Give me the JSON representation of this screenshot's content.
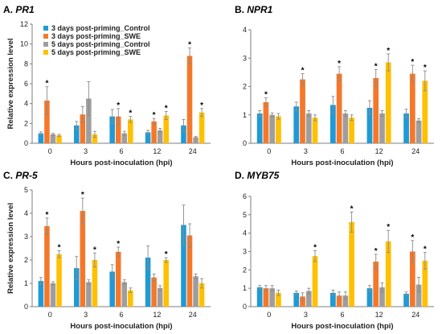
{
  "colors": {
    "blue": "#1f9ad6",
    "orange": "#f5782a",
    "gray": "#9e9e9e",
    "yellow": "#ffc000"
  },
  "chart_data": [
    {
      "type": "bar",
      "label": "A.",
      "title": "PR1",
      "xlabel": "Hours post-inoculation (hpi)",
      "ylabel": "Relative expression level",
      "ylim": [
        0,
        12
      ],
      "yticks": [
        0,
        2,
        4,
        6,
        8,
        10,
        12
      ],
      "categories": [
        "0",
        "3",
        "6",
        "12",
        "24"
      ],
      "legend": "top-left",
      "series": [
        {
          "name": "3 days post-priming_Control",
          "color": "#1f9ad6",
          "values": [
            1.0,
            1.8,
            2.7,
            1.1,
            1.8
          ],
          "errors": [
            0.15,
            0.4,
            0.7,
            0.2,
            0.6
          ]
        },
        {
          "name": "3 days post-priming_SWE",
          "color": "#f5782a",
          "values": [
            4.3,
            2.9,
            2.7,
            2.2,
            8.8
          ],
          "errors": [
            1.4,
            0.8,
            0.8,
            0.3,
            0.8
          ]
        },
        {
          "name": "5 days post-priming_Control",
          "color": "#9e9e9e",
          "values": [
            0.9,
            4.5,
            1.0,
            1.3,
            0.6
          ],
          "errors": [
            0.1,
            1.7,
            0.2,
            0.2,
            0.1
          ]
        },
        {
          "name": "5 days post-priming_SWE",
          "color": "#ffc000",
          "values": [
            0.8,
            0.9,
            2.4,
            2.8,
            3.1
          ],
          "errors": [
            0.1,
            0.3,
            0.3,
            0.4,
            0.4
          ]
        }
      ],
      "stars": [
        [
          0,
          1
        ],
        [
          2,
          1
        ],
        [
          2,
          3
        ],
        [
          3,
          1
        ],
        [
          3,
          3
        ],
        [
          4,
          1
        ],
        [
          4,
          3
        ]
      ]
    },
    {
      "type": "bar",
      "label": "B.",
      "title": "NPR1",
      "xlabel": "Hours post-inoculation (hpi)",
      "ylabel": "",
      "ylim": [
        0,
        4
      ],
      "yticks": [
        0,
        1,
        2,
        3,
        4
      ],
      "categories": [
        "0",
        "3",
        "6",
        "12",
        "24"
      ],
      "series": [
        {
          "name": "3 days post-priming_Control",
          "color": "#1f9ad6",
          "values": [
            1.05,
            1.3,
            1.35,
            1.25,
            1.05
          ],
          "errors": [
            0.1,
            0.15,
            0.3,
            0.25,
            0.15
          ]
        },
        {
          "name": "3 days post-priming_SWE",
          "color": "#f5782a",
          "values": [
            1.45,
            2.25,
            2.45,
            2.3,
            2.45
          ],
          "errors": [
            0.15,
            0.2,
            0.25,
            0.3,
            0.3
          ]
        },
        {
          "name": "5 days post-priming_Control",
          "color": "#9e9e9e",
          "values": [
            1.0,
            1.05,
            1.05,
            1.05,
            0.8
          ],
          "errors": [
            0.07,
            0.1,
            0.1,
            0.1,
            0.07
          ]
        },
        {
          "name": "5 days post-priming_SWE",
          "color": "#ffc000",
          "values": [
            0.95,
            0.9,
            0.9,
            2.85,
            2.2
          ],
          "errors": [
            0.1,
            0.1,
            0.1,
            0.3,
            0.35
          ]
        }
      ],
      "stars": [
        [
          0,
          1
        ],
        [
          1,
          1
        ],
        [
          2,
          1
        ],
        [
          3,
          1
        ],
        [
          3,
          3
        ],
        [
          4,
          1
        ],
        [
          4,
          3
        ]
      ]
    },
    {
      "type": "bar",
      "label": "C.",
      "title": "PR-5",
      "xlabel": "Hours post-inoculation (hpi)",
      "ylabel": "Relative expression level",
      "ylim": [
        0,
        5
      ],
      "yticks": [
        0,
        1,
        2,
        3,
        4,
        5
      ],
      "categories": [
        "0",
        "3",
        "6",
        "12",
        "24"
      ],
      "series": [
        {
          "name": "3 days post-priming_Control",
          "color": "#1f9ad6",
          "values": [
            1.1,
            1.65,
            1.5,
            2.1,
            3.5
          ],
          "errors": [
            0.15,
            0.5,
            0.3,
            0.5,
            0.85
          ]
        },
        {
          "name": "3 days post-priming_SWE",
          "color": "#f5782a",
          "values": [
            3.45,
            4.1,
            2.35,
            1.25,
            3.05
          ],
          "errors": [
            0.35,
            0.55,
            0.2,
            0.15,
            0.5
          ]
        },
        {
          "name": "5 days post-priming_Control",
          "color": "#9e9e9e",
          "values": [
            1.0,
            1.05,
            1.05,
            0.8,
            1.3
          ],
          "errors": [
            0.07,
            0.1,
            0.1,
            0.1,
            0.1
          ]
        },
        {
          "name": "5 days post-priming_SWE",
          "color": "#ffc000",
          "values": [
            2.25,
            2.0,
            0.7,
            2.0,
            1.0
          ],
          "errors": [
            0.15,
            0.3,
            0.1,
            0.1,
            0.2
          ]
        }
      ],
      "stars": [
        [
          0,
          1
        ],
        [
          0,
          3
        ],
        [
          1,
          1
        ],
        [
          1,
          3
        ],
        [
          2,
          1
        ],
        [
          3,
          3
        ]
      ]
    },
    {
      "type": "bar",
      "label": "D.",
      "title": "MYB75",
      "xlabel": "Hours post-inoculation (hpi)",
      "ylabel": "",
      "ylim": [
        0,
        6
      ],
      "yticks": [
        0,
        1,
        2,
        3,
        4,
        5,
        6
      ],
      "categories": [
        "0",
        "3",
        "6",
        "12",
        "24"
      ],
      "series": [
        {
          "name": "3 days post-priming_Control",
          "color": "#1f9ad6",
          "values": [
            1.05,
            0.75,
            0.75,
            1.0,
            0.7
          ],
          "errors": [
            0.1,
            0.1,
            0.15,
            0.15,
            0.1
          ]
        },
        {
          "name": "3 days post-priming_SWE",
          "color": "#f5782a",
          "values": [
            1.0,
            0.55,
            0.6,
            2.45,
            3.0
          ],
          "errors": [
            0.15,
            0.2,
            0.2,
            0.4,
            0.6
          ]
        },
        {
          "name": "5 days post-priming_Control",
          "color": "#9e9e9e",
          "values": [
            1.0,
            0.85,
            0.6,
            1.05,
            1.2
          ],
          "errors": [
            0.15,
            0.15,
            0.2,
            0.25,
            0.4
          ]
        },
        {
          "name": "5 days post-priming_SWE",
          "color": "#ffc000",
          "values": [
            0.75,
            2.75,
            4.6,
            3.55,
            2.5
          ],
          "errors": [
            0.15,
            0.3,
            0.55,
            0.6,
            0.45
          ]
        }
      ],
      "stars": [
        [
          1,
          3
        ],
        [
          2,
          3
        ],
        [
          3,
          1
        ],
        [
          3,
          3
        ],
        [
          4,
          1
        ],
        [
          4,
          3
        ]
      ]
    }
  ]
}
